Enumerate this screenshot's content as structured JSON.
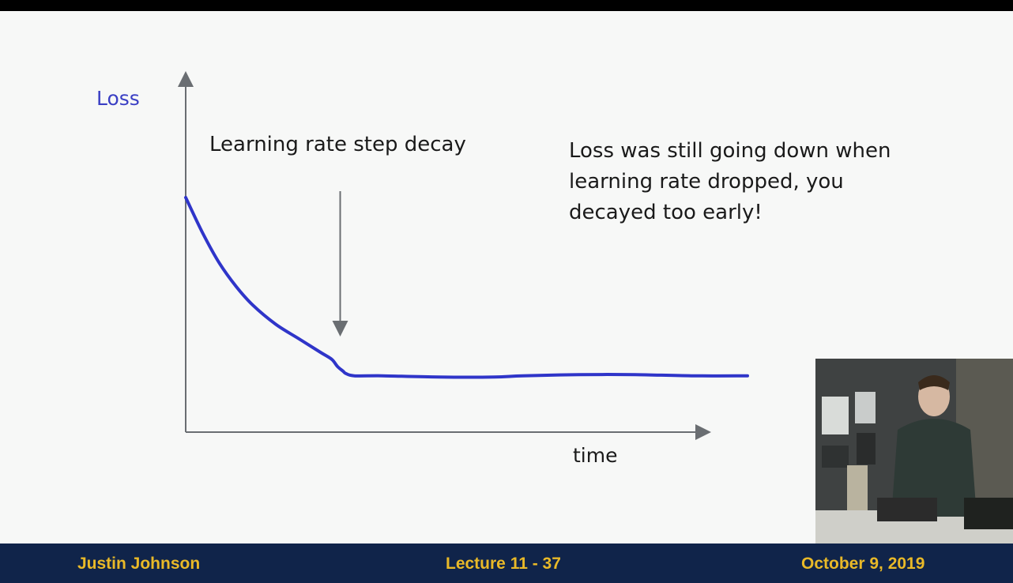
{
  "slide": {
    "annotation_arrow_label": "Learning rate step decay",
    "note": "Loss was still going down when learning rate dropped, you decayed too early!"
  },
  "footer": {
    "author": "Justin Johnson",
    "lecture": "Lecture 11 - 37",
    "date": "October 9, 2019"
  },
  "colors": {
    "loss_curve": "#2f35c9",
    "axis": "#6a6e72",
    "footer_bg": "#10244a",
    "footer_text": "#e9b928"
  },
  "chart_data": {
    "type": "line",
    "title": "",
    "xlabel": "time",
    "ylabel": "Loss",
    "xlim": [
      0,
      100
    ],
    "ylim": [
      0,
      100
    ],
    "grid": false,
    "series": [
      {
        "values_x": [
          0,
          3,
          6,
          9,
          12,
          16,
          20,
          24,
          26,
          27,
          28,
          28.5,
          30,
          35,
          45,
          55,
          60,
          70,
          80,
          90,
          100
        ],
        "values_y": [
          100,
          85,
          72,
          62,
          54,
          46,
          40,
          34,
          31,
          28,
          26,
          25,
          24,
          24,
          23.5,
          23.5,
          24,
          24.5,
          24.5,
          24,
          24
        ]
      }
    ],
    "annotation_x": 27.5
  }
}
